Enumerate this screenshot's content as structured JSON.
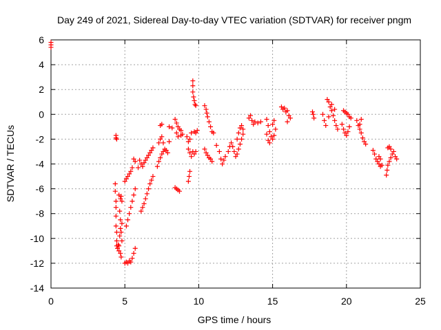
{
  "chart_data": {
    "type": "scatter",
    "title": "Day 249 of 2021, Sidereal Day-to-day VTEC variation (SDTVAR) for receiver pngm",
    "xlabel": "GPS time / hours",
    "ylabel": "SDTVAR / TECUs",
    "xlim": [
      0,
      25
    ],
    "ylim": [
      -14,
      6
    ],
    "xticks": [
      0,
      5,
      10,
      15,
      20,
      25
    ],
    "yticks": [
      -14,
      -12,
      -10,
      -8,
      -6,
      -4,
      -2,
      0,
      2,
      4,
      6
    ],
    "grid": true,
    "marker": "+",
    "color": "#ff0000",
    "series": [
      {
        "name": "SDTVAR",
        "points": [
          [
            0.0,
            5.8
          ],
          [
            0.0,
            5.6
          ],
          [
            0.0,
            5.4
          ],
          [
            4.4,
            -1.7
          ],
          [
            4.4,
            -1.9
          ],
          [
            4.45,
            -2.0
          ],
          [
            4.35,
            -5.6
          ],
          [
            4.35,
            -6.2
          ],
          [
            4.4,
            -7.0
          ],
          [
            4.4,
            -7.5
          ],
          [
            4.4,
            -8.2
          ],
          [
            4.4,
            -9.0
          ],
          [
            4.45,
            -9.5
          ],
          [
            4.45,
            -10.2
          ],
          [
            4.45,
            -10.6
          ],
          [
            4.5,
            -10.8
          ],
          [
            4.55,
            -10.5
          ],
          [
            4.6,
            -11.0
          ],
          [
            4.6,
            -10.6
          ],
          [
            4.65,
            -9.8
          ],
          [
            4.7,
            -11.2
          ],
          [
            4.75,
            -11.5
          ],
          [
            4.7,
            -9.2
          ],
          [
            4.8,
            -8.8
          ],
          [
            4.6,
            -6.5
          ],
          [
            4.7,
            -6.8
          ],
          [
            4.8,
            -7.0
          ],
          [
            4.75,
            -6.6
          ],
          [
            4.65,
            -7.8
          ],
          [
            4.7,
            -8.5
          ],
          [
            4.75,
            -9.5
          ],
          [
            4.8,
            -10.2
          ],
          [
            5.0,
            -12.0
          ],
          [
            5.1,
            -11.9
          ],
          [
            5.2,
            -12.0
          ],
          [
            5.3,
            -11.8
          ],
          [
            5.4,
            -11.9
          ],
          [
            5.5,
            -11.6
          ],
          [
            5.6,
            -11.2
          ],
          [
            5.7,
            -10.8
          ],
          [
            5.1,
            -9.0
          ],
          [
            5.2,
            -8.5
          ],
          [
            5.3,
            -8.0
          ],
          [
            5.4,
            -7.5
          ],
          [
            5.5,
            -7.0
          ],
          [
            5.6,
            -6.5
          ],
          [
            5.7,
            -6.0
          ],
          [
            5.0,
            -5.4
          ],
          [
            5.1,
            -5.2
          ],
          [
            5.2,
            -5.0
          ],
          [
            5.3,
            -4.8
          ],
          [
            5.4,
            -4.6
          ],
          [
            5.5,
            -4.3
          ],
          [
            5.6,
            -3.6
          ],
          [
            5.7,
            -3.8
          ],
          [
            6.1,
            -7.8
          ],
          [
            6.2,
            -7.5
          ],
          [
            6.3,
            -7.2
          ],
          [
            6.4,
            -6.8
          ],
          [
            6.5,
            -6.4
          ],
          [
            6.6,
            -6.0
          ],
          [
            6.7,
            -5.6
          ],
          [
            6.8,
            -5.3
          ],
          [
            6.9,
            -5.0
          ],
          [
            6.2,
            -4.2
          ],
          [
            6.3,
            -3.9
          ],
          [
            6.4,
            -3.7
          ],
          [
            6.5,
            -3.5
          ],
          [
            6.6,
            -3.3
          ],
          [
            6.7,
            -3.1
          ],
          [
            6.8,
            -2.9
          ],
          [
            6.9,
            -2.7
          ],
          [
            6.0,
            -3.7
          ],
          [
            6.1,
            -4.0
          ],
          [
            5.9,
            -4.3
          ],
          [
            7.2,
            -4.2
          ],
          [
            7.3,
            -3.8
          ],
          [
            7.4,
            -3.5
          ],
          [
            7.5,
            -3.2
          ],
          [
            7.6,
            -3.0
          ],
          [
            7.7,
            -2.8
          ],
          [
            7.8,
            -2.9
          ],
          [
            7.9,
            -3.1
          ],
          [
            7.3,
            -2.3
          ],
          [
            7.4,
            -2.0
          ],
          [
            7.5,
            -1.8
          ],
          [
            7.6,
            -2.3
          ],
          [
            7.4,
            -0.9
          ],
          [
            7.5,
            -0.8
          ],
          [
            8.0,
            -2.2
          ],
          [
            8.0,
            -1.0
          ],
          [
            8.2,
            -1.1
          ],
          [
            8.4,
            -0.4
          ],
          [
            8.5,
            -0.7
          ],
          [
            8.6,
            -1.0
          ],
          [
            8.7,
            -1.2
          ],
          [
            8.8,
            -1.3
          ],
          [
            8.5,
            -1.5
          ],
          [
            8.6,
            -1.8
          ],
          [
            8.8,
            -1.7
          ],
          [
            8.9,
            -1.6
          ],
          [
            8.4,
            -5.9
          ],
          [
            8.5,
            -6.0
          ],
          [
            8.6,
            -6.1
          ],
          [
            8.7,
            -6.2
          ],
          [
            9.2,
            -1.8
          ],
          [
            9.3,
            -2.2
          ],
          [
            9.4,
            -2.0
          ],
          [
            9.5,
            -1.5
          ],
          [
            9.3,
            -2.8
          ],
          [
            9.4,
            -3.1
          ],
          [
            9.5,
            -3.4
          ],
          [
            9.6,
            -3.0
          ],
          [
            9.7,
            -3.2
          ],
          [
            9.8,
            -3.0
          ],
          [
            9.4,
            -4.6
          ],
          [
            9.35,
            -5.0
          ],
          [
            9.3,
            -5.4
          ],
          [
            9.6,
            2.7
          ],
          [
            9.6,
            2.3
          ],
          [
            9.6,
            1.8
          ],
          [
            9.65,
            1.4
          ],
          [
            9.7,
            1.1
          ],
          [
            9.75,
            0.8
          ],
          [
            9.8,
            0.7
          ],
          [
            9.7,
            -1.4
          ],
          [
            9.8,
            -1.5
          ],
          [
            9.9,
            -1.3
          ],
          [
            10.4,
            0.7
          ],
          [
            10.5,
            0.4
          ],
          [
            10.55,
            0.1
          ],
          [
            10.6,
            -0.2
          ],
          [
            10.7,
            -0.6
          ],
          [
            10.8,
            -1.0
          ],
          [
            10.9,
            -1.4
          ],
          [
            10.4,
            -2.8
          ],
          [
            10.5,
            -3.1
          ],
          [
            10.6,
            -3.3
          ],
          [
            10.7,
            -3.5
          ],
          [
            10.8,
            -3.6
          ],
          [
            10.9,
            -3.8
          ],
          [
            11.0,
            -1.5
          ],
          [
            11.2,
            -2.5
          ],
          [
            11.4,
            -3.0
          ],
          [
            11.5,
            -3.6
          ],
          [
            11.6,
            -4.0
          ],
          [
            11.7,
            -3.7
          ],
          [
            11.8,
            -3.4
          ],
          [
            12.0,
            -3.0
          ],
          [
            12.1,
            -2.6
          ],
          [
            12.2,
            -2.3
          ],
          [
            12.3,
            -2.6
          ],
          [
            12.4,
            -3.0
          ],
          [
            12.5,
            -3.4
          ],
          [
            12.6,
            -2.0
          ],
          [
            12.7,
            -1.5
          ],
          [
            12.8,
            -1.1
          ],
          [
            12.9,
            -0.9
          ],
          [
            13.0,
            -1.2
          ],
          [
            12.6,
            -3.2
          ],
          [
            12.7,
            -2.8
          ],
          [
            12.8,
            -2.4
          ],
          [
            12.9,
            -2.0
          ],
          [
            13.0,
            -1.6
          ],
          [
            13.4,
            -0.3
          ],
          [
            13.5,
            -0.1
          ],
          [
            13.6,
            -0.5
          ],
          [
            13.7,
            -0.8
          ],
          [
            13.8,
            -0.6
          ],
          [
            14.0,
            -0.7
          ],
          [
            14.2,
            -0.6
          ],
          [
            14.6,
            -0.4
          ],
          [
            14.7,
            -0.9
          ],
          [
            14.8,
            -1.4
          ],
          [
            14.9,
            -1.8
          ],
          [
            15.0,
            -2.0
          ],
          [
            15.1,
            -1.7
          ],
          [
            15.2,
            -1.2
          ],
          [
            14.6,
            -1.6
          ],
          [
            14.7,
            -2.1
          ],
          [
            14.8,
            -2.3
          ],
          [
            15.0,
            -0.8
          ],
          [
            15.1,
            -0.5
          ],
          [
            15.6,
            0.6
          ],
          [
            15.7,
            0.4
          ],
          [
            15.8,
            0.5
          ],
          [
            15.9,
            0.2
          ],
          [
            16.0,
            0.3
          ],
          [
            16.1,
            -0.1
          ],
          [
            16.2,
            -0.3
          ],
          [
            16.0,
            -0.6
          ],
          [
            17.7,
            0.2
          ],
          [
            17.75,
            0.0
          ],
          [
            17.8,
            -0.3
          ],
          [
            18.4,
            0.0
          ],
          [
            18.5,
            -0.5
          ],
          [
            18.6,
            -0.9
          ],
          [
            18.7,
            1.2
          ],
          [
            18.8,
            1.0
          ],
          [
            18.9,
            0.6
          ],
          [
            19.0,
            0.3
          ],
          [
            19.1,
            -0.1
          ],
          [
            19.2,
            -0.5
          ],
          [
            19.3,
            -0.9
          ],
          [
            19.4,
            -1.2
          ],
          [
            18.8,
            -0.2
          ],
          [
            19.0,
            0.8
          ],
          [
            19.2,
            0.4
          ],
          [
            19.8,
            0.3
          ],
          [
            19.9,
            0.2
          ],
          [
            20.0,
            0.1
          ],
          [
            20.1,
            0.0
          ],
          [
            20.2,
            -0.2
          ],
          [
            20.3,
            -0.3
          ],
          [
            19.7,
            -0.8
          ],
          [
            19.8,
            -1.2
          ],
          [
            19.9,
            -1.5
          ],
          [
            20.0,
            -1.7
          ],
          [
            20.1,
            -1.4
          ],
          [
            20.2,
            -1.0
          ],
          [
            20.7,
            -0.5
          ],
          [
            20.8,
            -0.9
          ],
          [
            20.9,
            -1.2
          ],
          [
            21.0,
            -1.5
          ],
          [
            21.1,
            -1.9
          ],
          [
            21.2,
            -2.2
          ],
          [
            21.3,
            -2.4
          ],
          [
            21.0,
            -0.4
          ],
          [
            20.9,
            -0.8
          ],
          [
            21.8,
            -2.9
          ],
          [
            21.9,
            -3.2
          ],
          [
            22.0,
            -3.6
          ],
          [
            22.1,
            -3.8
          ],
          [
            22.2,
            -4.0
          ],
          [
            22.3,
            -4.2
          ],
          [
            22.4,
            -4.1
          ],
          [
            22.2,
            -3.4
          ],
          [
            22.3,
            -3.6
          ],
          [
            22.7,
            -4.9
          ],
          [
            22.75,
            -4.5
          ],
          [
            22.8,
            -4.1
          ],
          [
            22.9,
            -3.8
          ],
          [
            23.0,
            -3.5
          ],
          [
            23.1,
            -3.2
          ],
          [
            23.2,
            -3.0
          ],
          [
            22.8,
            -2.7
          ],
          [
            22.9,
            -2.6
          ],
          [
            23.0,
            -2.8
          ],
          [
            23.3,
            -3.4
          ],
          [
            23.4,
            -3.6
          ]
        ]
      }
    ]
  }
}
